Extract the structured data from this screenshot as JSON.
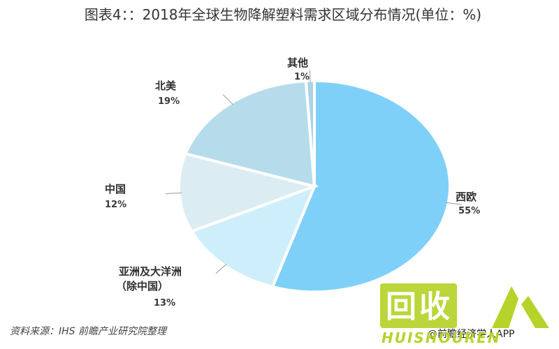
{
  "chart_data": {
    "type": "pie",
    "title": "图表4：：2018年全球生物降解塑料需求区域分布情况(单位：%)",
    "slices": [
      {
        "name": "西欧",
        "value": 55,
        "label": "55%",
        "color": "#7fd0f8"
      },
      {
        "name": "亚洲及大洋洲（除中国）",
        "value": 13,
        "label": "13%",
        "color": "#cfeefb"
      },
      {
        "name": "中国",
        "value": 12,
        "label": "12%",
        "color": "#dcecf3"
      },
      {
        "name": "北美",
        "value": 19,
        "label": "19%",
        "color": "#b6dcec"
      },
      {
        "name": "其他",
        "value": 1,
        "label": "1%",
        "color": "#a9d4e6"
      }
    ]
  },
  "labels": {
    "west_europe": "西欧",
    "asia_line1": "亚洲及大洋洲",
    "asia_line2": "（除中国）",
    "china": "中国",
    "north_america": "北美",
    "other": "其他"
  },
  "source": "资料来源：IHS 前瞻产业研究院整理",
  "credit": "@前瞻经济学人APP",
  "watermark": {
    "glyph": "回收",
    "text": "HUISHOUREN"
  }
}
